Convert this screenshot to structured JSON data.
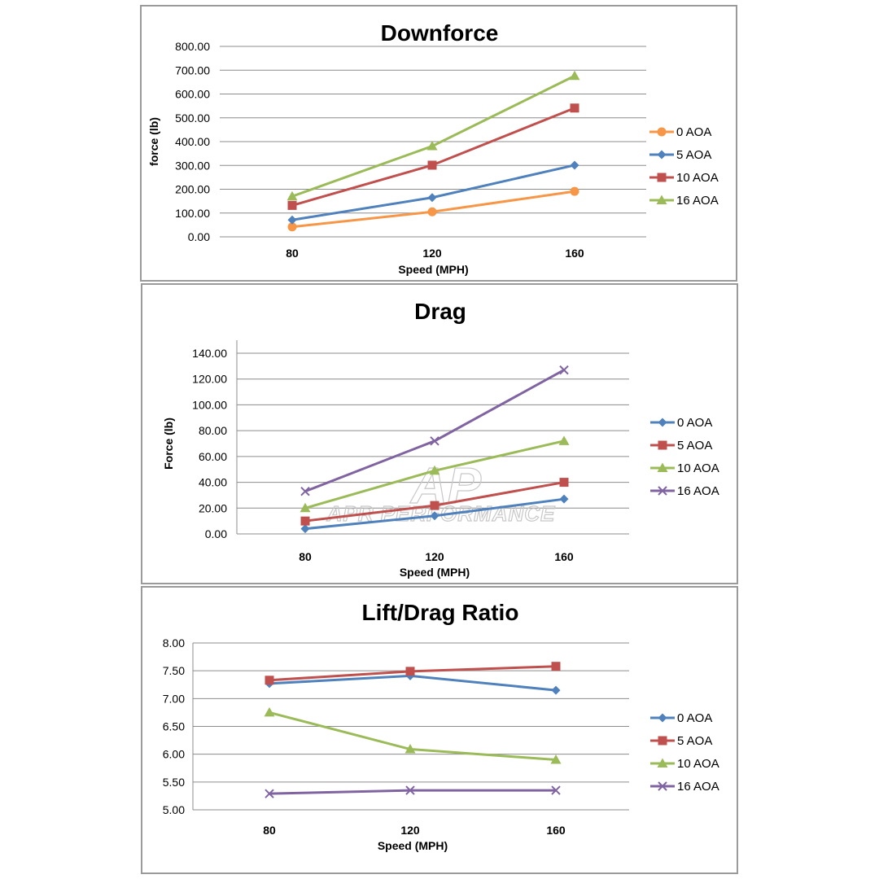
{
  "chart_data": [
    {
      "type": "line",
      "title": "Downforce",
      "xlabel": "Speed (MPH)",
      "ylabel": "force (lb)",
      "categories": [
        "80",
        "120",
        "160"
      ],
      "ylim": [
        0,
        800
      ],
      "yticks": [
        "0.00",
        "100.00",
        "200.00",
        "300.00",
        "400.00",
        "500.00",
        "600.00",
        "700.00",
        "800.00"
      ],
      "grid": true,
      "legend": "right",
      "series": [
        {
          "name": "0 AOA",
          "values": [
            42,
            105,
            191
          ],
          "color": "#f79646",
          "marker": "circle"
        },
        {
          "name": "5 AOA",
          "values": [
            71,
            165,
            301
          ],
          "color": "#4f81bd",
          "marker": "diamond"
        },
        {
          "name": "10 AOA",
          "values": [
            132,
            301,
            541
          ],
          "color": "#c0504d",
          "marker": "square"
        },
        {
          "name": "16 AOA",
          "values": [
            170,
            381,
            676
          ],
          "color": "#9bbb59",
          "marker": "triangle"
        }
      ]
    },
    {
      "type": "line",
      "title": "Drag",
      "xlabel": "Speed (MPH)",
      "ylabel": "Force (lb)",
      "categories": [
        "80",
        "120",
        "160"
      ],
      "ylim": [
        0,
        140
      ],
      "yticks": [
        "0.00",
        "20.00",
        "40.00",
        "60.00",
        "80.00",
        "100.00",
        "120.00",
        "140.00"
      ],
      "grid": true,
      "legend": "right",
      "watermark": {
        "logo": "AP",
        "text": "APR PERFORMANCE"
      },
      "series": [
        {
          "name": "0 AOA",
          "values": [
            4,
            14,
            27
          ],
          "color": "#4f81bd",
          "marker": "diamond"
        },
        {
          "name": "5 AOA",
          "values": [
            10,
            22,
            40
          ],
          "color": "#c0504d",
          "marker": "square"
        },
        {
          "name": "10 AOA",
          "values": [
            20,
            49,
            72
          ],
          "color": "#9bbb59",
          "marker": "triangle"
        },
        {
          "name": "16 AOA",
          "values": [
            33,
            72,
            127
          ],
          "color": "#8064a2",
          "marker": "x"
        }
      ]
    },
    {
      "type": "line",
      "title": "Lift/Drag Ratio",
      "xlabel": "Speed (MPH)",
      "ylabel": "",
      "categories": [
        "80",
        "120",
        "160"
      ],
      "ylim": [
        5,
        8
      ],
      "yticks": [
        "5.00",
        "5.50",
        "6.00",
        "6.50",
        "7.00",
        "7.50",
        "8.00"
      ],
      "grid": true,
      "legend": "right",
      "series": [
        {
          "name": "0 AOA",
          "values": [
            7.27,
            7.41,
            7.15
          ],
          "color": "#4f81bd",
          "marker": "diamond"
        },
        {
          "name": "5 AOA",
          "values": [
            7.33,
            7.49,
            7.58
          ],
          "color": "#c0504d",
          "marker": "square"
        },
        {
          "name": "10 AOA",
          "values": [
            6.75,
            6.09,
            5.9
          ],
          "color": "#9bbb59",
          "marker": "triangle"
        },
        {
          "name": "16 AOA",
          "values": [
            5.29,
            5.35,
            5.35
          ],
          "color": "#8064a2",
          "marker": "x"
        }
      ]
    }
  ]
}
